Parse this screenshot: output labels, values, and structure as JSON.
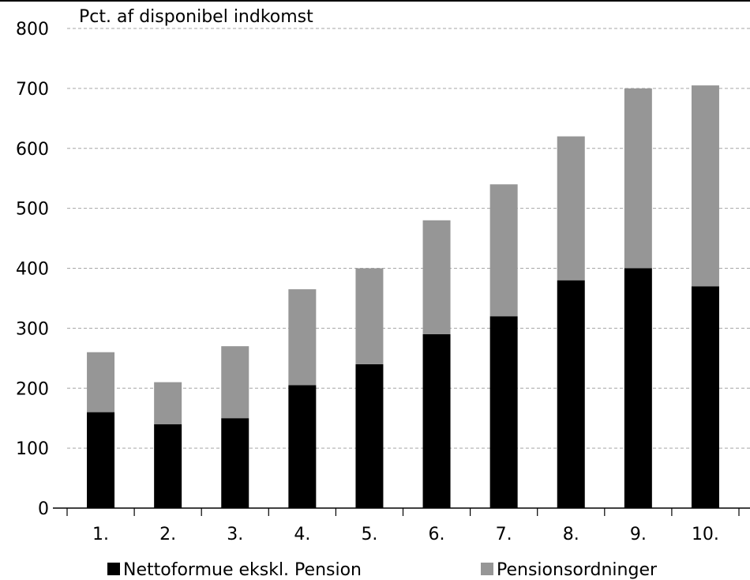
{
  "chart_data": {
    "type": "bar",
    "stacked": true,
    "ylabel": "Pct. af disponibel indkomst",
    "ylim": [
      0,
      800
    ],
    "yticks": [
      0,
      100,
      200,
      300,
      400,
      500,
      600,
      700,
      800
    ],
    "categories": [
      "1.",
      "2.",
      "3.",
      "4.",
      "5.",
      "6.",
      "7.",
      "8.",
      "9.",
      "10."
    ],
    "series": [
      {
        "name": "Nettoformue ekskl. Pension",
        "color": "#000000",
        "values": [
          160,
          140,
          150,
          205,
          240,
          290,
          320,
          380,
          400,
          370
        ]
      },
      {
        "name": "Pensionsordninger",
        "color": "#969696",
        "values": [
          100,
          70,
          120,
          160,
          160,
          190,
          220,
          240,
          300,
          335
        ]
      }
    ],
    "grid": true,
    "legend": "bottom"
  }
}
